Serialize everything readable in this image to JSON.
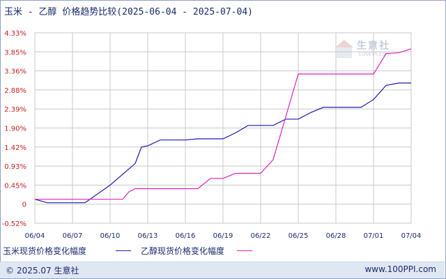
{
  "chart_data": {
    "type": "line",
    "title": "玉米 - 乙醇 价格趋势比较(2025-06-04 - 2025-07-04)",
    "x_ticks": [
      "06/04",
      "06/07",
      "06/10",
      "06/13",
      "06/16",
      "06/19",
      "06/22",
      "06/25",
      "06/28",
      "07/01",
      "07/04"
    ],
    "y_ticks": [
      "4.33%",
      "3.85%",
      "3.36%",
      "2.88%",
      "2.39%",
      "1.90%",
      "1.42%",
      "0.93%",
      "0.45%",
      "0",
      "-0.52%"
    ],
    "ylim": [
      -0.52,
      4.33
    ],
    "xlim": [
      0,
      30
    ],
    "grid": true,
    "legend_position": "bottom",
    "series": [
      {
        "name": "玉米现货价格变化幅度",
        "color": "#1a1ab0",
        "points": [
          [
            0,
            0.09
          ],
          [
            1,
            0
          ],
          [
            4,
            0
          ],
          [
            6,
            0.45
          ],
          [
            8,
            1
          ],
          [
            8.5,
            1.42
          ],
          [
            9,
            1.45
          ],
          [
            10,
            1.6
          ],
          [
            11,
            1.6
          ],
          [
            12,
            1.6
          ],
          [
            13,
            1.63
          ],
          [
            14,
            1.63
          ],
          [
            15,
            1.63
          ],
          [
            16,
            1.78
          ],
          [
            17,
            1.97
          ],
          [
            18,
            1.97
          ],
          [
            19,
            1.97
          ],
          [
            20,
            2.13
          ],
          [
            21,
            2.13
          ],
          [
            22,
            2.3
          ],
          [
            23,
            2.43
          ],
          [
            24,
            2.43
          ],
          [
            25,
            2.43
          ],
          [
            26,
            2.43
          ],
          [
            27,
            2.63
          ],
          [
            28,
            2.99
          ],
          [
            29,
            3.05
          ],
          [
            30,
            3.05
          ]
        ]
      },
      {
        "name": "乙醇现货价格变化幅度",
        "color": "#e020c0",
        "points": [
          [
            0,
            0.09
          ],
          [
            6,
            0.09
          ],
          [
            7,
            0.09
          ],
          [
            7.5,
            0.28
          ],
          [
            8,
            0.36
          ],
          [
            13,
            0.36
          ],
          [
            14,
            0.62
          ],
          [
            15,
            0.62
          ],
          [
            16,
            0.75
          ],
          [
            17,
            0.75
          ],
          [
            18,
            0.75
          ],
          [
            19,
            1.1
          ],
          [
            21,
            3.28
          ],
          [
            26,
            3.28
          ],
          [
            27,
            3.28
          ],
          [
            28,
            3.8
          ],
          [
            29,
            3.82
          ],
          [
            30,
            3.92
          ]
        ]
      }
    ]
  },
  "footer": {
    "copyright": "2025.07 生意社",
    "copy_symbol": "©",
    "site": "www.100PPI.com"
  },
  "watermark": {
    "name": "生意社",
    "url": "100PPI.com"
  },
  "colors": {
    "axis_text": "#cc2020",
    "grid": "#c8c8c8",
    "title_text": "#1a2a6e"
  }
}
